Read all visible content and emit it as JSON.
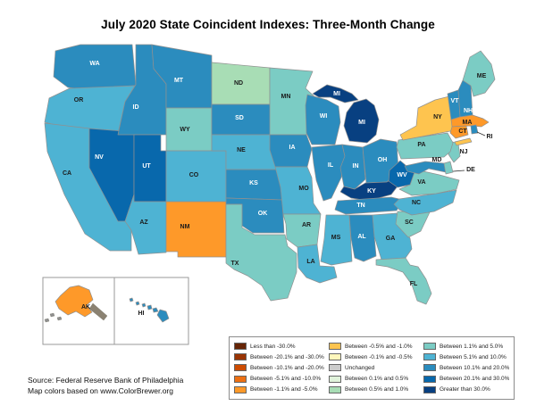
{
  "title": "July 2020 State Coincident Indexes: Three-Month Change",
  "source": {
    "line1": "Source: Federal Reserve Bank of Philadelphia",
    "line2": "Map colors based on www.ColorBrewer.org"
  },
  "legend": {
    "items": [
      {
        "label": "Less than -30.0%",
        "color": "#662506"
      },
      {
        "label": "Between -20.1% and -30.0%",
        "color": "#993404"
      },
      {
        "label": "Between -10.1% and -20.0%",
        "color": "#cc4c02"
      },
      {
        "label": "Between -5.1% and -10.0%",
        "color": "#ec7014"
      },
      {
        "label": "Between -1.1% and -5.0%",
        "color": "#fe9929"
      },
      {
        "label": "Between -0.5% and -1.0%",
        "color": "#fec44f"
      },
      {
        "label": "Between -0.1% and -0.5%",
        "color": "#fff7bc"
      },
      {
        "label": "Unchanged",
        "color": "#cccccc"
      },
      {
        "label": "Between 0.1% and 0.5%",
        "color": "#e0f3db"
      },
      {
        "label": "Between 0.5% and 1.0%",
        "color": "#a8ddb5"
      },
      {
        "label": "Between 1.1% and 5.0%",
        "color": "#7bccc4"
      },
      {
        "label": "Between 5.1% and 10.0%",
        "color": "#4eb3d3"
      },
      {
        "label": "Between 10.1% and 20.0%",
        "color": "#2b8cbe"
      },
      {
        "label": "Between 20.1% and 30.0%",
        "color": "#0868ac"
      },
      {
        "label": "Greater than 30.0%",
        "color": "#084081"
      }
    ]
  },
  "map": {
    "states": [
      {
        "abbr": "WA",
        "category_index": 12,
        "category": "Between 10.1% and 20.0%"
      },
      {
        "abbr": "OR",
        "category_index": 11,
        "category": "Between 5.1% and 10.0%"
      },
      {
        "abbr": "CA",
        "category_index": 11,
        "category": "Between 5.1% and 10.0%"
      },
      {
        "abbr": "NV",
        "category_index": 13,
        "category": "Between 20.1% and 30.0%"
      },
      {
        "abbr": "ID",
        "category_index": 12,
        "category": "Between 10.1% and 20.0%"
      },
      {
        "abbr": "MT",
        "category_index": 12,
        "category": "Between 10.1% and 20.0%"
      },
      {
        "abbr": "WY",
        "category_index": 10,
        "category": "Between 1.1% and 5.0%"
      },
      {
        "abbr": "UT",
        "category_index": 13,
        "category": "Between 20.1% and 30.0%"
      },
      {
        "abbr": "CO",
        "category_index": 11,
        "category": "Between 5.1% and 10.0%"
      },
      {
        "abbr": "AZ",
        "category_index": 11,
        "category": "Between 5.1% and 10.0%"
      },
      {
        "abbr": "NM",
        "category_index": 4,
        "category": "Between -1.1% and -5.0%"
      },
      {
        "abbr": "ND",
        "category_index": 9,
        "category": "Between 0.5% and 1.0%"
      },
      {
        "abbr": "SD",
        "category_index": 12,
        "category": "Between 10.1% and 20.0%"
      },
      {
        "abbr": "NE",
        "category_index": 11,
        "category": "Between 5.1% and 10.0%"
      },
      {
        "abbr": "KS",
        "category_index": 12,
        "category": "Between 10.1% and 20.0%"
      },
      {
        "abbr": "OK",
        "category_index": 12,
        "category": "Between 10.1% and 20.0%"
      },
      {
        "abbr": "TX",
        "category_index": 10,
        "category": "Between 1.1% and 5.0%"
      },
      {
        "abbr": "MN",
        "category_index": 10,
        "category": "Between 1.1% and 5.0%"
      },
      {
        "abbr": "IA",
        "category_index": 12,
        "category": "Between 10.1% and 20.0%"
      },
      {
        "abbr": "MO",
        "category_index": 11,
        "category": "Between 5.1% and 10.0%"
      },
      {
        "abbr": "AR",
        "category_index": 10,
        "category": "Between 1.1% and 5.0%"
      },
      {
        "abbr": "LA",
        "category_index": 11,
        "category": "Between 5.1% and 10.0%"
      },
      {
        "abbr": "WI",
        "category_index": 12,
        "category": "Between 10.1% and 20.0%"
      },
      {
        "abbr": "IL",
        "category_index": 12,
        "category": "Between 10.1% and 20.0%"
      },
      {
        "abbr": "IN",
        "category_index": 12,
        "category": "Between 10.1% and 20.0%"
      },
      {
        "abbr": "OH",
        "category_index": 12,
        "category": "Between 10.1% and 20.0%"
      },
      {
        "abbr": "MI",
        "category_index": 14,
        "category": "Greater than 30.0%"
      },
      {
        "abbr": "KY",
        "category_index": 14,
        "category": "Greater than 30.0%"
      },
      {
        "abbr": "TN",
        "category_index": 12,
        "category": "Between 10.1% and 20.0%"
      },
      {
        "abbr": "MS",
        "category_index": 11,
        "category": "Between 5.1% and 10.0%"
      },
      {
        "abbr": "AL",
        "category_index": 12,
        "category": "Between 10.1% and 20.0%"
      },
      {
        "abbr": "GA",
        "category_index": 11,
        "category": "Between 5.1% and 10.0%"
      },
      {
        "abbr": "FL",
        "category_index": 10,
        "category": "Between 1.1% and 5.0%"
      },
      {
        "abbr": "SC",
        "category_index": 10,
        "category": "Between 1.1% and 5.0%"
      },
      {
        "abbr": "NC",
        "category_index": 11,
        "category": "Between 5.1% and 10.0%"
      },
      {
        "abbr": "VA",
        "category_index": 10,
        "category": "Between 1.1% and 5.0%"
      },
      {
        "abbr": "WV",
        "category_index": 13,
        "category": "Between 20.1% and 30.0%"
      },
      {
        "abbr": "MD",
        "category_index": 12,
        "category": "Between 10.1% and 20.0%"
      },
      {
        "abbr": "DE",
        "category_index": 10,
        "category": "Between 1.1% and 5.0%"
      },
      {
        "abbr": "NJ",
        "category_index": 10,
        "category": "Between 1.1% and 5.0%"
      },
      {
        "abbr": "PA",
        "category_index": 10,
        "category": "Between 1.1% and 5.0%"
      },
      {
        "abbr": "NY",
        "category_index": 5,
        "category": "Between -0.5% and -1.0%"
      },
      {
        "abbr": "VT",
        "category_index": 12,
        "category": "Between 10.1% and 20.0%"
      },
      {
        "abbr": "NH",
        "category_index": 12,
        "category": "Between 10.1% and 20.0%"
      },
      {
        "abbr": "ME",
        "category_index": 10,
        "category": "Between 1.1% and 5.0%"
      },
      {
        "abbr": "MA",
        "category_index": 4,
        "category": "Between -1.1% and -5.0%"
      },
      {
        "abbr": "CT",
        "category_index": 4,
        "category": "Between -1.1% and -5.0%"
      },
      {
        "abbr": "RI",
        "category_index": 12,
        "category": "Between 10.1% and 20.0%"
      },
      {
        "abbr": "AK",
        "category_index": 4,
        "category": "Between -1.1% and -5.0%"
      },
      {
        "abbr": "HI",
        "category_index": 12,
        "category": "Between 10.1% and 20.0%"
      }
    ]
  }
}
